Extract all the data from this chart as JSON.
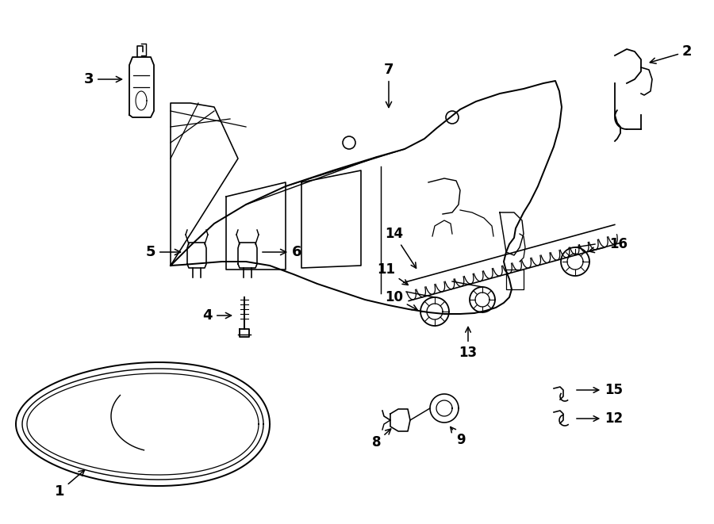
{
  "bg_color": "#ffffff",
  "line_color": "#000000",
  "text_color": "#000000",
  "figsize": [
    9.0,
    6.61
  ],
  "dpi": 100
}
